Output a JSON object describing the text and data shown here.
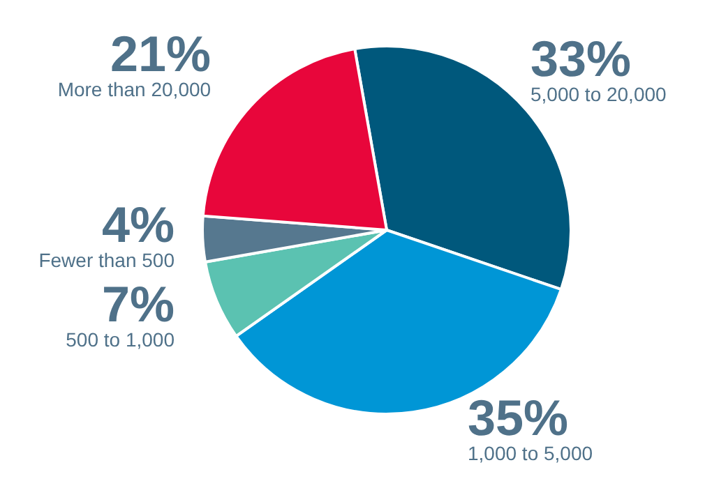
{
  "chart_data": {
    "type": "pie",
    "categories": [
      "5,000 to 20,000",
      "1,000 to 5,000",
      "500 to 1,000",
      "Fewer than 500",
      "More than 20,000"
    ],
    "values": [
      33,
      35,
      7,
      4,
      21
    ],
    "colors": [
      "#00587c",
      "#0096d6",
      "#5bc2b1",
      "#56788f",
      "#e8063b"
    ],
    "value_labels": [
      "33%",
      "35%",
      "7%",
      "4%",
      "21%"
    ],
    "legend": false
  }
}
